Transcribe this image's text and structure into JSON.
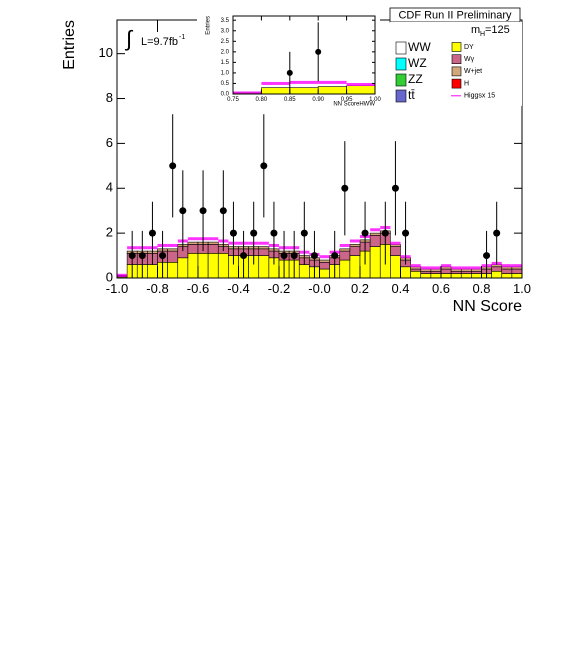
{
  "chart_data": [
    {
      "type": "stacked_histogram",
      "title": "CDF Run II Preliminary",
      "xlabel": "NN Score",
      "ylabel": "Entries",
      "mass_label": {
        "main": "m",
        "sub": "H",
        "rest": "=125"
      },
      "lumi_label": {
        "integral": "∫",
        "main": "L=9.7fb",
        "sup": "-1"
      },
      "xlim": [
        -1,
        1
      ],
      "ylim": [
        0,
        11.5
      ],
      "xticks": [
        {
          "value": -1,
          "label": "-1.0"
        },
        {
          "value": -0.8,
          "label": "-0.8"
        },
        {
          "value": -0.6,
          "label": "-0.6"
        },
        {
          "value": -0.4,
          "label": "-0.4"
        },
        {
          "value": -0.2,
          "label": "-0.2"
        },
        {
          "value": 0,
          "label": "-0.0"
        },
        {
          "value": 0.2,
          "label": "0.2"
        },
        {
          "value": 0.4,
          "label": "0.4"
        },
        {
          "value": 0.6,
          "label": "0.6"
        },
        {
          "value": 0.8,
          "label": "0.8"
        },
        {
          "value": 1,
          "label": "1.0"
        }
      ],
      "yticks": [
        0,
        2,
        4,
        6,
        8,
        10
      ],
      "bins": [
        -1,
        -0.95,
        -0.9,
        -0.85,
        -0.8,
        -0.75,
        -0.7,
        -0.65,
        -0.6,
        -0.55,
        -0.5,
        -0.45,
        -0.4,
        -0.35,
        -0.3,
        -0.25,
        -0.2,
        -0.15,
        -0.1,
        -0.05,
        0,
        0.05,
        0.1,
        0.15,
        0.2,
        0.25,
        0.3,
        0.35,
        0.4,
        0.45,
        0.5,
        0.55,
        0.6,
        0.65,
        0.7,
        0.75,
        0.8,
        0.85,
        0.9,
        0.95,
        1
      ],
      "series": [
        {
          "name": "WW",
          "color": "#ffffff"
        },
        {
          "name": "WZ",
          "color": "#00ffff"
        },
        {
          "name": "ZZ",
          "color": "#33cc33"
        },
        {
          "name": "tt̄",
          "color": "#6666cc"
        },
        {
          "name": "DY",
          "color": "#ffff00",
          "values": [
            0.05,
            0.6,
            0.6,
            0.6,
            0.7,
            0.7,
            0.9,
            1.1,
            1.1,
            1.1,
            1.1,
            1.0,
            1.0,
            1.0,
            1.0,
            0.9,
            0.8,
            0.8,
            0.6,
            0.5,
            0.4,
            0.6,
            0.8,
            1.0,
            1.2,
            1.4,
            1.5,
            1.0,
            0.5,
            0.3,
            0.2,
            0.2,
            0.2,
            0.2,
            0.2,
            0.2,
            0.2,
            0.3,
            0.2,
            0.2
          ]
        },
        {
          "name": "Wγ",
          "color": "#cc6688",
          "values": [
            0.05,
            0.5,
            0.5,
            0.5,
            0.5,
            0.5,
            0.5,
            0.4,
            0.4,
            0.4,
            0.3,
            0.3,
            0.3,
            0.3,
            0.3,
            0.3,
            0.3,
            0.3,
            0.3,
            0.3,
            0.3,
            0.3,
            0.4,
            0.4,
            0.4,
            0.5,
            0.5,
            0.4,
            0.3,
            0.1,
            0.1,
            0.1,
            0.2,
            0.1,
            0.1,
            0.1,
            0.2,
            0.2,
            0.2,
            0.2
          ]
        },
        {
          "name": "W+jet",
          "color": "#d2a77c",
          "values": [
            0.02,
            0.1,
            0.1,
            0.1,
            0.1,
            0.1,
            0.1,
            0.1,
            0.1,
            0.1,
            0.1,
            0.1,
            0.1,
            0.1,
            0.1,
            0.1,
            0.1,
            0.1,
            0.1,
            0.1,
            0.1,
            0.1,
            0.1,
            0.1,
            0.1,
            0.1,
            0.1,
            0.1,
            0.1,
            0.1,
            0.1,
            0.1,
            0.1,
            0.1,
            0.1,
            0.1,
            0.1,
            0.1,
            0.1,
            0.1
          ]
        },
        {
          "name": "H",
          "color": "#ff0000"
        },
        {
          "name": "Higgsx 15",
          "color": "#ff00ff",
          "style": "line",
          "values": [
            0,
            0.15,
            0.15,
            0.15,
            0.15,
            0.15,
            0.15,
            0.15,
            0.15,
            0.15,
            0.15,
            0.15,
            0.15,
            0.15,
            0.15,
            0.15,
            0.15,
            0.15,
            0.15,
            0.15,
            0.15,
            0.15,
            0.15,
            0.15,
            0.15,
            0.15,
            0.15,
            0.05,
            0.05,
            0.05,
            0.05,
            0.05,
            0.05,
            0.05,
            0.05,
            0.05,
            0.05,
            0.05,
            0.05,
            0.05
          ]
        }
      ],
      "points": {
        "x": [
          -0.925,
          -0.875,
          -0.825,
          -0.775,
          -0.725,
          -0.675,
          -0.575,
          -0.475,
          -0.425,
          -0.375,
          -0.325,
          -0.275,
          -0.225,
          -0.175,
          -0.125,
          -0.075,
          -0.025,
          0.075,
          0.125,
          0.225,
          0.325,
          0.375,
          0.425,
          0.825,
          0.875
        ],
        "values": [
          1,
          1,
          2,
          1,
          5,
          3,
          3,
          3,
          2,
          1,
          2,
          5,
          2,
          1,
          1,
          2,
          1,
          1,
          4,
          2,
          2,
          4,
          2,
          1,
          2
        ],
        "errors": [
          1.1,
          1.1,
          1.4,
          1.1,
          2.3,
          1.8,
          1.8,
          1.8,
          1.4,
          1.1,
          1.4,
          2.3,
          1.4,
          1.1,
          1.1,
          1.4,
          1.1,
          1.1,
          2.1,
          1.4,
          1.4,
          2.1,
          1.4,
          1.1,
          1.4
        ]
      }
    },
    {
      "type": "inset_histogram",
      "xlabel": "NN ScoreHWW",
      "ylabel": "Entries",
      "xlim": [
        0.75,
        1.0
      ],
      "ylim": [
        0,
        3.7
      ],
      "xticks": [
        {
          "value": 0.75,
          "label": "0.75"
        },
        {
          "value": 0.8,
          "label": "0.80"
        },
        {
          "value": 0.85,
          "label": "0.85"
        },
        {
          "value": 0.9,
          "label": "0.90"
        },
        {
          "value": 0.95,
          "label": "0.95"
        },
        {
          "value": 1,
          "label": "1.00"
        }
      ],
      "yticks": [
        {
          "value": 0,
          "label": "0.0"
        },
        0.5,
        {
          "value": 1,
          "label": "1.0"
        },
        1.5,
        {
          "value": 2,
          "label": "2.0"
        },
        2.5,
        {
          "value": 3,
          "label": "3.0"
        },
        3.5
      ],
      "bins": [
        0.75,
        0.8,
        0.85,
        0.9,
        0.95,
        1.0
      ],
      "series": [
        {
          "color": "#ffff00",
          "values": [
            0.05,
            0.3,
            0.3,
            0.35,
            0.4
          ]
        },
        {
          "color": "#ff00ff",
          "style": "line",
          "values": [
            0,
            0.2,
            0.25,
            0.2,
            0.05
          ]
        }
      ],
      "points": {
        "x": [
          0.85,
          0.9
        ],
        "values": [
          1,
          2
        ],
        "errors": [
          1,
          1.4
        ]
      }
    }
  ]
}
